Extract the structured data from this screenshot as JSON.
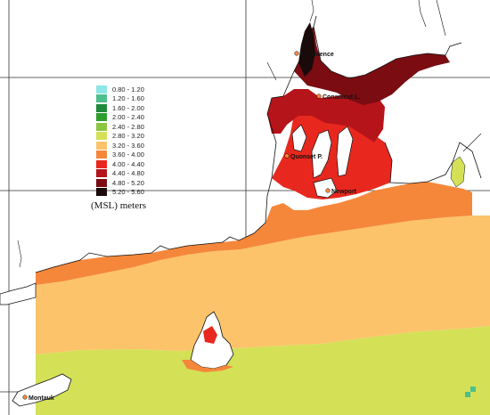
{
  "legend": {
    "unit": "(MSL) meters",
    "items": [
      {
        "label": "0.80 - 1.20",
        "color": "#8ee6e6"
      },
      {
        "label": "1.20 - 1.60",
        "color": "#4dbf8c"
      },
      {
        "label": "1.60 - 2.00",
        "color": "#1f8a3a"
      },
      {
        "label": "2.00 - 2.40",
        "color": "#2e9e2e"
      },
      {
        "label": "2.40 - 2.80",
        "color": "#8cc63f"
      },
      {
        "label": "2.80 - 3.20",
        "color": "#d4e157"
      },
      {
        "label": "3.20 - 3.60",
        "color": "#fcc36a"
      },
      {
        "label": "3.60 - 4.00",
        "color": "#f5873a"
      },
      {
        "label": "4.00 - 4.40",
        "color": "#e8281e"
      },
      {
        "label": "4.40 - 4.80",
        "color": "#b5141a"
      },
      {
        "label": "4.80 - 5.20",
        "color": "#7a0c12"
      },
      {
        "label": "5.20 - 5.60",
        "color": "#1a0a0a"
      }
    ]
  },
  "places": {
    "providence": "Providence",
    "conanicut": "Conanicut L.",
    "quonset": "Quonset P.",
    "newport": "Newport",
    "montauk": "Montauk"
  },
  "colors": {
    "band_3_2_3_6": "#fcc36a",
    "band_2_8_3_2": "#d4e157",
    "band_3_6_4_0": "#f5873a",
    "band_4_0_4_4": "#e8281e",
    "band_4_4_4_8": "#b5141a",
    "band_4_8_5_2": "#7a0c12",
    "band_5_2_5_6": "#1a0a0a",
    "land": "#ffffff",
    "coast": "#111111",
    "grid": "#333333"
  }
}
